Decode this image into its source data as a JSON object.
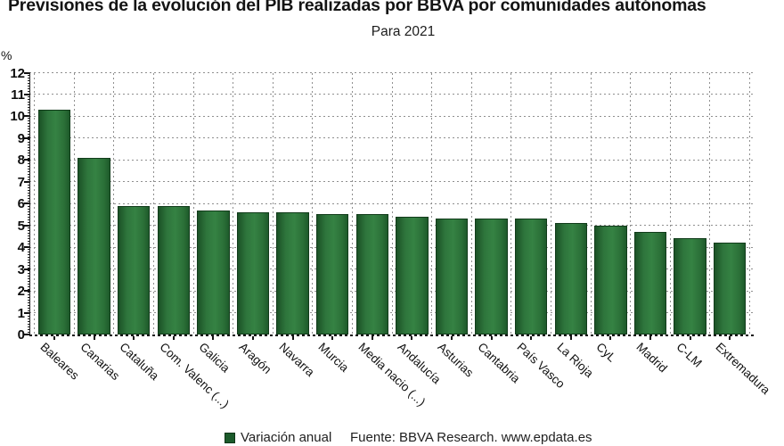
{
  "header": {
    "title": "Previsiones de la evolución del PIB realizadas por BBVA por comunidades autónomas",
    "subtitle": "Para 2021"
  },
  "y_axis": {
    "unit_label": "%"
  },
  "legend": {
    "label": "Variación anual",
    "color": "#1c5b2b"
  },
  "footer": {
    "source": "Fuente: BBVA Research. www.epdata.es"
  },
  "colors": {
    "bar_main": "#2e753c",
    "bar_border": "#123c1b",
    "grid": "#8f8f8f",
    "axis": "#111111",
    "text": "#141414"
  },
  "chart_data": {
    "type": "bar",
    "title": "Previsiones de la evolución del PIB realizadas por BBVA por comunidades autónomas",
    "subtitle": "Para 2021",
    "categories": [
      "Baleares",
      "Canarias",
      "Cataluña",
      "Com. Valenc (...)",
      "Galicia",
      "Aragón",
      "Navarra",
      "Murcia",
      "Media nacio (...)",
      "Andalucía",
      "Asturias",
      "Cantabria",
      "País Vasco",
      "La Rioja",
      "CyL",
      "Madrid",
      "C-LM",
      "Extremadura"
    ],
    "series": [
      {
        "name": "Variación anual",
        "values": [
          10.3,
          8.1,
          5.9,
          5.9,
          5.7,
          5.6,
          5.6,
          5.5,
          5.5,
          5.4,
          5.3,
          5.3,
          5.3,
          5.1,
          5.0,
          4.7,
          4.4,
          4.2
        ]
      }
    ],
    "xlabel": "",
    "ylabel": "%",
    "ylim": [
      0,
      12
    ],
    "y_ticks": [
      0,
      1,
      2,
      3,
      4,
      5,
      6,
      7,
      8,
      9,
      10,
      11,
      12
    ],
    "grid": true,
    "legend_position": "bottom",
    "bar_color": "#2e753c"
  }
}
